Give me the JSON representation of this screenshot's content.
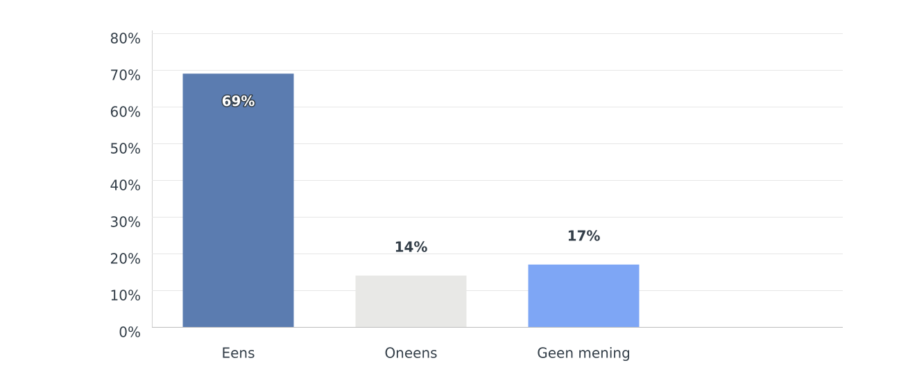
{
  "chart_data": {
    "type": "bar",
    "categories": [
      "Eens",
      "Oneens",
      "Geen mening"
    ],
    "values": [
      69,
      14,
      17
    ],
    "value_labels": [
      "69%",
      "14%",
      "17%"
    ],
    "colors": [
      "#5b7cb0",
      "#e8e8e6",
      "#7ea6f5"
    ],
    "ylim": [
      0,
      80
    ],
    "yticks": [
      {
        "value": 0,
        "label": "0%"
      },
      {
        "value": 10,
        "label": "10%"
      },
      {
        "value": 20,
        "label": "20%"
      },
      {
        "value": 30,
        "label": "30%"
      },
      {
        "value": 40,
        "label": "40%"
      },
      {
        "value": 50,
        "label": "50%"
      },
      {
        "value": 60,
        "label": "60%"
      },
      {
        "value": 70,
        "label": "70%"
      },
      {
        "value": 80,
        "label": "80%"
      }
    ],
    "grid": true
  }
}
